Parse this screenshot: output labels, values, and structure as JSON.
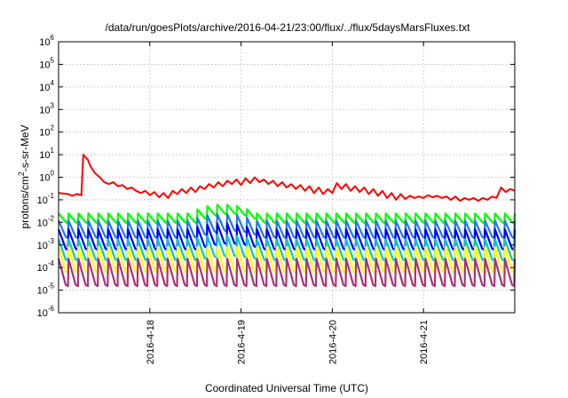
{
  "chart_data": {
    "type": "line",
    "title": "/data/run/goesPlots/archive/2016-04-21/23:00/flux/../flux/5daysMarsFluxes.txt",
    "xlabel": "Coordinated Universal Time (UTC)",
    "ylabel": {
      "pre": "protons/cm",
      "sup": "2",
      "post": "-s-sr-MeV"
    },
    "y_scale": "log",
    "ylim_exp": [
      -6,
      6
    ],
    "y_ticks": [
      {
        "base": "10",
        "exp": "-6"
      },
      {
        "base": "10",
        "exp": "-5"
      },
      {
        "base": "10",
        "exp": "-4"
      },
      {
        "base": "10",
        "exp": "-3"
      },
      {
        "base": "10",
        "exp": "-2"
      },
      {
        "base": "10",
        "exp": "-1"
      },
      {
        "base": "10",
        "exp": "0"
      },
      {
        "base": "10",
        "exp": "1"
      },
      {
        "base": "10",
        "exp": "2"
      },
      {
        "base": "10",
        "exp": "3"
      },
      {
        "base": "10",
        "exp": "4"
      },
      {
        "base": "10",
        "exp": "5"
      },
      {
        "base": "10",
        "exp": "6"
      }
    ],
    "xlim_days": [
      0,
      5
    ],
    "x_ticks": [
      {
        "label": "2016-4-18",
        "day": 1
      },
      {
        "label": "2016-4-19",
        "day": 2
      },
      {
        "label": "2016-4-20",
        "day": 3
      },
      {
        "label": "2016-4-21",
        "day": 4
      }
    ],
    "grid": true,
    "series": [
      {
        "color": "#ff0000",
        "style": "envelope",
        "x": [
          0.0,
          0.1,
          0.15,
          0.2,
          0.25,
          0.27,
          0.32,
          0.35,
          0.4,
          0.45,
          0.5,
          0.55,
          0.6,
          0.65,
          0.7,
          0.75,
          0.8,
          0.85,
          0.9,
          0.95,
          1.0,
          1.05,
          1.1,
          1.15,
          1.2,
          1.25,
          1.3,
          1.35,
          1.4,
          1.45,
          1.5,
          1.55,
          1.6,
          1.65,
          1.7,
          1.75,
          1.8,
          1.85,
          1.9,
          1.95,
          2.0,
          2.05,
          2.1,
          2.15,
          2.2,
          2.25,
          2.3,
          2.35,
          2.4,
          2.45,
          2.5,
          2.55,
          2.6,
          2.65,
          2.7,
          2.75,
          2.8,
          2.85,
          2.9,
          2.95,
          3.0,
          3.05,
          3.1,
          3.15,
          3.2,
          3.25,
          3.3,
          3.35,
          3.4,
          3.45,
          3.5,
          3.55,
          3.6,
          3.65,
          3.7,
          3.75,
          3.8,
          3.85,
          3.9,
          3.95,
          4.0,
          4.05,
          4.1,
          4.15,
          4.2,
          4.25,
          4.3,
          4.35,
          4.4,
          4.45,
          4.5,
          4.55,
          4.6,
          4.65,
          4.7,
          4.75,
          4.8,
          4.85,
          4.9,
          4.95,
          5.0
        ],
        "y": [
          0.2,
          0.18,
          0.15,
          0.18,
          0.16,
          10,
          6,
          3,
          1.5,
          1.0,
          0.6,
          0.5,
          0.6,
          0.4,
          0.45,
          0.3,
          0.35,
          0.25,
          0.2,
          0.25,
          0.16,
          0.22,
          0.13,
          0.2,
          0.12,
          0.25,
          0.18,
          0.3,
          0.2,
          0.35,
          0.22,
          0.4,
          0.3,
          0.5,
          0.35,
          0.6,
          0.4,
          0.7,
          0.5,
          0.8,
          0.45,
          0.9,
          0.55,
          1.0,
          0.6,
          0.8,
          0.5,
          0.7,
          0.4,
          0.6,
          0.35,
          0.5,
          0.3,
          0.45,
          0.25,
          0.4,
          0.2,
          0.35,
          0.18,
          0.3,
          0.2,
          0.55,
          0.3,
          0.5,
          0.25,
          0.4,
          0.22,
          0.35,
          0.18,
          0.3,
          0.15,
          0.25,
          0.12,
          0.2,
          0.1,
          0.18,
          0.11,
          0.15,
          0.12,
          0.14,
          0.12,
          0.16,
          0.13,
          0.15,
          0.12,
          0.14,
          0.1,
          0.14,
          0.09,
          0.12,
          0.1,
          0.12,
          0.09,
          0.12,
          0.1,
          0.14,
          0.12,
          0.35,
          0.22,
          0.3,
          0.25
        ]
      },
      {
        "color": "#00ff00",
        "style": "sawtooth",
        "cycles": 46,
        "peak": 0.025,
        "trough": 0.009,
        "bump_days": [
          1.5,
          2.2
        ],
        "bump_factor": 2.5
      },
      {
        "color": "#1e7be6",
        "style": "sawtooth",
        "cycles": 46,
        "peak": 0.012,
        "trough": 0.002,
        "bump_days": [
          1.5,
          2.2
        ],
        "bump_factor": 2.0
      },
      {
        "color": "#0000ff",
        "style": "sawtooth",
        "cycles": 46,
        "peak": 0.005,
        "trough": 0.0006,
        "bump_days": [
          1.5,
          2.2
        ],
        "bump_factor": 1.8
      },
      {
        "color": "#00c8c8",
        "style": "sawtooth",
        "cycles": 46,
        "peak": 0.0018,
        "trough": 0.0002,
        "bump_days": [
          1.5,
          2.2
        ],
        "bump_factor": 1.5
      },
      {
        "color": "#ffff00",
        "style": "sawtooth",
        "cycles": 46,
        "peak": 0.0008,
        "trough": 6e-05,
        "bump_days": [],
        "bump_factor": 1.0
      },
      {
        "color": "#aa3377",
        "style": "sawtooth",
        "cycles": 46,
        "peak": 0.00025,
        "trough": 1.5e-05,
        "bump_days": [],
        "bump_factor": 1.0
      }
    ]
  }
}
